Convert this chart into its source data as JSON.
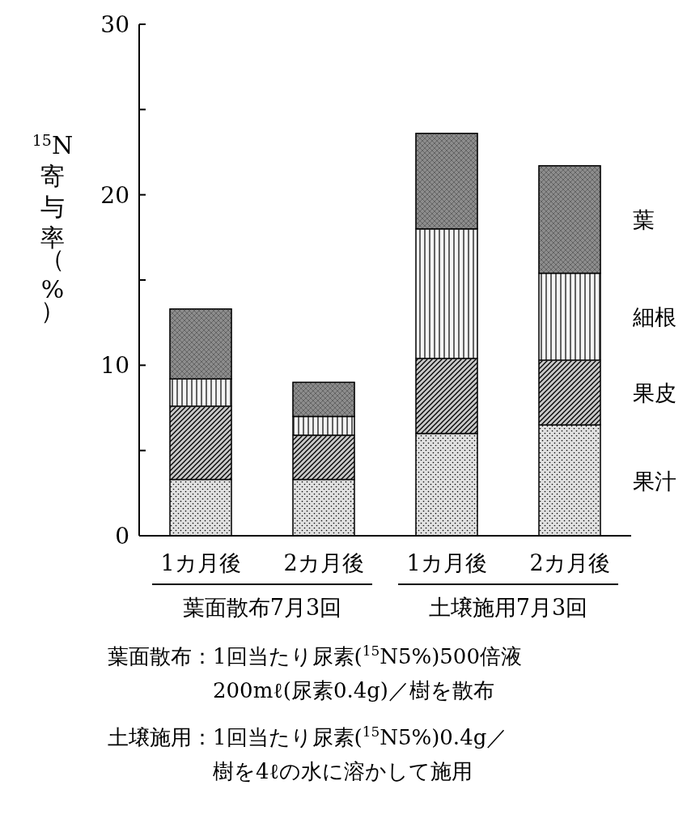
{
  "chart_data": {
    "type": "bar",
    "stacked": true,
    "ylabel": "$^{15}$N寄与率（%）",
    "categories": [
      "1カ月後",
      "2カ月後",
      "1カ月後",
      "2カ月後"
    ],
    "series": [
      {
        "name": "果汁",
        "color": "#e0e0e0",
        "values": [
          3.3,
          3.3,
          6.0,
          6.5
        ]
      },
      {
        "name": "果皮",
        "color": "#c8c8c8",
        "values": [
          4.3,
          2.6,
          4.4,
          3.8
        ]
      },
      {
        "name": "細根",
        "color": "#f4f4f4",
        "values": [
          1.6,
          1.1,
          7.6,
          5.1
        ]
      },
      {
        "name": "葉",
        "color": "#8c8c8c",
        "values": [
          4.1,
          2.0,
          5.6,
          6.3
        ]
      }
    ],
    "ylim": [
      0,
      30
    ],
    "yticks": [
      0,
      {
        "value": 5,
        "label": null
      },
      10,
      {
        "value": 15,
        "label": null
      },
      20,
      {
        "value": 25,
        "label": null
      },
      30
    ],
    "grid": false,
    "legend": "right",
    "annotations": [
      "葉面散布7月3回",
      "土壌施用7月3回",
      "葉面散布：1回当たり尿素($^{15}$N5%)500倍液",
      "200mℓ(尿素0.4g)／樹を散布",
      "土壌施用：1回当たり尿素($^{15}$N5%)0.4g／",
      "樹を4ℓの水に溶かして施用"
    ]
  }
}
